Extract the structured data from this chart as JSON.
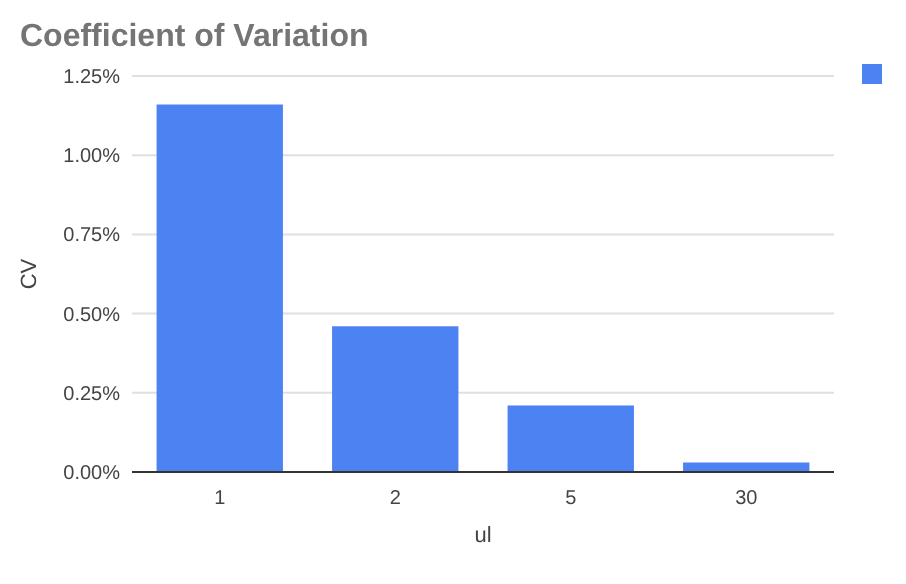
{
  "chart_data": {
    "type": "bar",
    "title": "Coefficient of Variation",
    "xlabel": "ul",
    "ylabel": "CV",
    "categories": [
      "1",
      "2",
      "5",
      "30"
    ],
    "series": [
      {
        "color": "#4d82f3",
        "values": [
          1.16,
          0.46,
          0.21,
          0.03
        ]
      }
    ],
    "ylim": [
      0,
      1.25
    ],
    "yticks": [
      {
        "value": 0,
        "label": "0.00%"
      },
      {
        "value": 0.25,
        "label": "0.25%"
      },
      {
        "value": 0.5,
        "label": "0.50%"
      },
      {
        "value": 0.75,
        "label": "0.75%"
      },
      {
        "value": 1,
        "label": "1.00%"
      },
      {
        "value": 1.25,
        "label": "1.25%"
      }
    ],
    "grid": "y"
  }
}
